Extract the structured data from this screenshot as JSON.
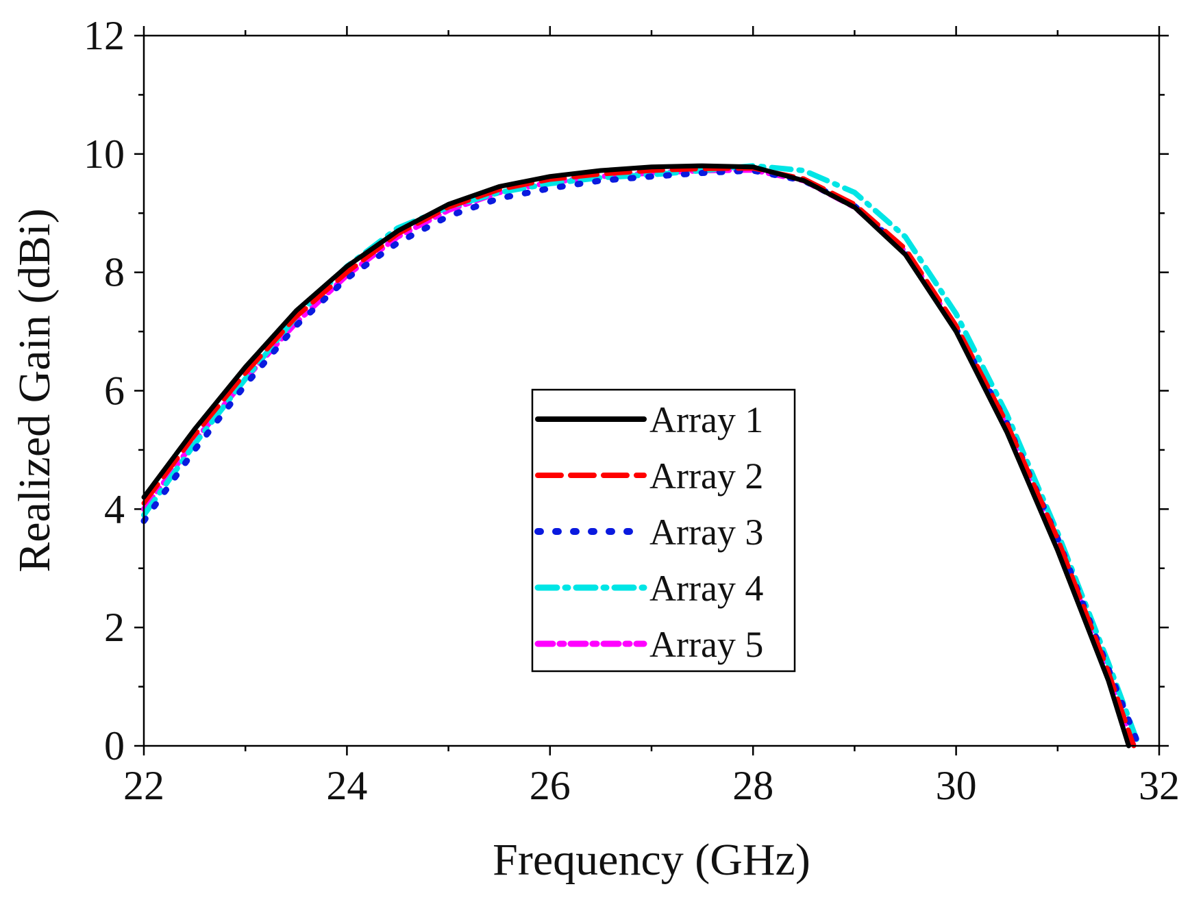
{
  "chart_data": {
    "type": "line",
    "title": "",
    "xlabel": "Frequency (GHz)",
    "ylabel": "Realized Gain (dBi)",
    "xlim": [
      22,
      32
    ],
    "ylim": [
      0,
      12
    ],
    "xticks": [
      22,
      24,
      26,
      28,
      30,
      32
    ],
    "yticks": [
      0,
      2,
      4,
      6,
      8,
      10,
      12
    ],
    "x_minor_step": 1,
    "y_minor_step": 1,
    "grid": false,
    "legend_position": "center",
    "series": [
      {
        "name": "Array 1",
        "color": "#000000",
        "style": "solid",
        "x": [
          22,
          22.5,
          23,
          23.5,
          24,
          24.5,
          25,
          25.5,
          26,
          26.5,
          27,
          27.5,
          28,
          28.5,
          29,
          29.5,
          30,
          30.5,
          31,
          31.5,
          31.7
        ],
        "y": [
          4.2,
          5.35,
          6.4,
          7.35,
          8.1,
          8.7,
          9.15,
          9.45,
          9.62,
          9.72,
          9.78,
          9.8,
          9.78,
          9.55,
          9.1,
          8.3,
          7.0,
          5.3,
          3.3,
          1.1,
          0.0
        ]
      },
      {
        "name": "Array 2",
        "color": "#ff0000",
        "style": "dash",
        "x": [
          22,
          22.5,
          23,
          23.5,
          24,
          24.5,
          25,
          25.5,
          26,
          26.5,
          27,
          27.5,
          28,
          28.5,
          29,
          29.5,
          30,
          30.5,
          31,
          31.5,
          31.75
        ],
        "y": [
          4.1,
          5.25,
          6.3,
          7.25,
          8.0,
          8.65,
          9.1,
          9.4,
          9.57,
          9.66,
          9.72,
          9.75,
          9.76,
          9.58,
          9.15,
          8.4,
          7.1,
          5.45,
          3.5,
          1.25,
          0.0
        ]
      },
      {
        "name": "Array 3",
        "color": "#0a1adf",
        "style": "dot",
        "x": [
          22,
          22.5,
          23,
          23.5,
          24,
          24.5,
          25,
          25.5,
          26,
          26.5,
          27,
          27.5,
          28,
          28.5,
          29,
          29.5,
          30,
          30.5,
          31,
          31.5,
          31.8
        ],
        "y": [
          3.8,
          5.0,
          6.1,
          7.1,
          7.9,
          8.5,
          8.95,
          9.25,
          9.42,
          9.55,
          9.62,
          9.68,
          9.72,
          9.55,
          9.12,
          8.35,
          7.05,
          5.45,
          3.5,
          1.3,
          0.0
        ]
      },
      {
        "name": "Array 4",
        "color": "#00e5e5",
        "style": "dashdot",
        "x": [
          22,
          22.5,
          23,
          23.5,
          24,
          24.5,
          25,
          25.5,
          26,
          26.5,
          27,
          27.5,
          28,
          28.5,
          29,
          29.5,
          30,
          30.5,
          31,
          31.5,
          31.8
        ],
        "y": [
          3.9,
          5.1,
          6.2,
          7.25,
          8.1,
          8.75,
          9.1,
          9.35,
          9.5,
          9.6,
          9.65,
          9.72,
          9.8,
          9.72,
          9.35,
          8.6,
          7.3,
          5.6,
          3.6,
          1.4,
          0.0
        ]
      },
      {
        "name": "Array 5",
        "color": "#ff00ff",
        "style": "dashdot2",
        "x": [
          22,
          22.5,
          23,
          23.5,
          24,
          24.5,
          25,
          25.5,
          26,
          26.5,
          27,
          27.5,
          28,
          28.5,
          29,
          29.5,
          30,
          30.5,
          31,
          31.5,
          31.75
        ],
        "y": [
          4.0,
          5.15,
          6.2,
          7.15,
          7.95,
          8.6,
          9.05,
          9.35,
          9.52,
          9.62,
          9.68,
          9.72,
          9.73,
          9.55,
          9.1,
          8.35,
          7.05,
          5.4,
          3.45,
          1.2,
          0.0
        ]
      }
    ]
  }
}
